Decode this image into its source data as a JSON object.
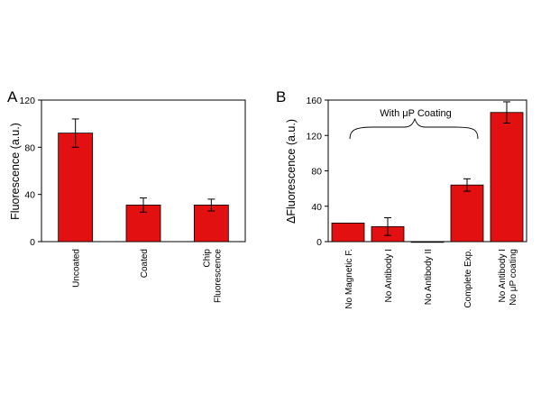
{
  "colors": {
    "bar": "#e21010",
    "bar_stroke": "#000000",
    "axis": "#000000"
  },
  "chart_data": [
    {
      "panel": "A",
      "type": "bar",
      "ylabel": "Fluorescence (a.u.)",
      "xlabel": "",
      "ylim": [
        0,
        120
      ],
      "yticks": [
        0,
        40,
        80,
        120
      ],
      "categories": [
        [
          "Uncoated"
        ],
        [
          "Coated"
        ],
        [
          "Chip",
          "Fluorescence"
        ]
      ],
      "values": [
        92,
        31,
        31
      ],
      "errors": [
        12,
        6,
        5
      ],
      "grid": false
    },
    {
      "panel": "B",
      "type": "bar",
      "ylabel": "ΔFluorescence (a.u.)",
      "xlabel": "",
      "ylim": [
        0,
        160
      ],
      "yticks": [
        0,
        40,
        80,
        120,
        160
      ],
      "categories": [
        [
          "No Magnetic F."
        ],
        [
          "No Antibody I"
        ],
        [
          "No Antibody II"
        ],
        [
          "Complete Exp."
        ],
        [
          "No Antibody I",
          "No μP coating"
        ]
      ],
      "values": [
        21,
        17,
        0,
        64,
        146
      ],
      "errors": [
        0,
        10,
        0,
        7,
        12
      ],
      "annotation": "With μP Coating",
      "grid": false
    }
  ]
}
